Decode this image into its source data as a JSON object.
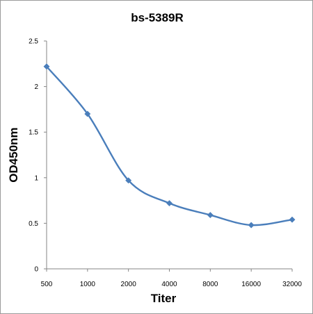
{
  "chart_data": {
    "type": "line",
    "title": "bs-5389R",
    "xlabel": "Titer",
    "ylabel": "OD450nm",
    "categories": [
      "500",
      "1000",
      "2000",
      "4000",
      "8000",
      "16000",
      "32000"
    ],
    "series": [
      {
        "values": [
          2.22,
          1.7,
          0.97,
          0.72,
          0.59,
          0.48,
          0.54
        ]
      }
    ],
    "ylim": [
      0,
      2.5
    ],
    "yticks": [
      "0",
      "0.5",
      "1",
      "1.5",
      "2",
      "2.5"
    ],
    "grid": false,
    "legend": "none",
    "smooth": true,
    "line_color": "#4a7ebb",
    "marker": "diamond"
  }
}
